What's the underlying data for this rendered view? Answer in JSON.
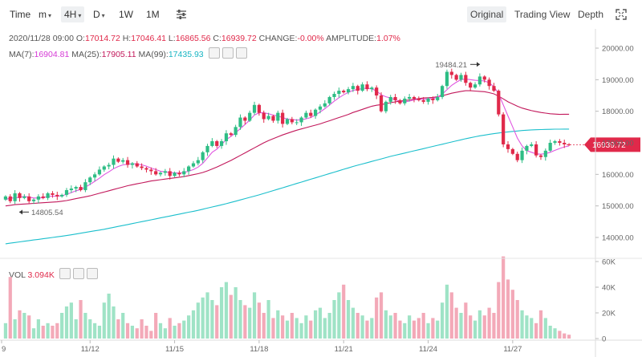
{
  "toolbar": {
    "items": [
      "Time",
      "m",
      "4H",
      "D",
      "1W",
      "1M"
    ],
    "active": "4H",
    "right": [
      "Original",
      "Trading View",
      "Depth"
    ],
    "active_right": "Original",
    "icons": [
      "indicator-settings-icon",
      "fullscreen-icon"
    ]
  },
  "ohlc": {
    "datetime": "2020/11/28 09:00",
    "open_label": "O:",
    "open": "17014.72",
    "high_label": "H:",
    "high": "17046.41",
    "low_label": "L:",
    "low": "16865.56",
    "close_label": "C:",
    "close": "16939.72",
    "change_label": "CHANGE:",
    "change": "-0.00%",
    "amplitude_label": "AMPLITUDE:",
    "amplitude": "1.07%"
  },
  "ma": {
    "ma7_label": "MA(7):",
    "ma7": "16904.81",
    "ma25_label": "MA(25):",
    "ma25": "17905.11",
    "ma99_label": "MA(99):",
    "ma99": "17435.93"
  },
  "vol": {
    "label": "VOL",
    "value": "3.094K"
  },
  "colors": {
    "up": "#2ebd85",
    "down": "#e0294a",
    "up_vol": "#9fe3c6",
    "down_vol": "#f3a9b8",
    "ma7": "#e056e0",
    "ma25": "#c2185b",
    "ma99": "#1bbfcc"
  },
  "chart_data": {
    "type": "candlestick",
    "x_ticks": [
      "9",
      "11/12",
      "11/15",
      "11/18",
      "11/21",
      "11/24",
      "11/27"
    ],
    "y_ticks": [
      "20000.00",
      "19000.00",
      "18000.00",
      "17000.00",
      "16000.00",
      "15000.00",
      "14000.00"
    ],
    "ylim": [
      13900,
      20200
    ],
    "vol_ticks": [
      "60K",
      "40K",
      "20K",
      "0"
    ],
    "vol_ylim": [
      0,
      60000
    ],
    "annotations": {
      "high": "19484.21",
      "low": "14805.54"
    },
    "last_price": "16939.72",
    "closes": [
      15300,
      15150,
      15400,
      15250,
      15300,
      15150,
      15200,
      15300,
      15250,
      15400,
      15350,
      15300,
      15350,
      15500,
      15550,
      15600,
      15500,
      15750,
      15900,
      16000,
      16150,
      16250,
      16300,
      16500,
      16400,
      16450,
      16300,
      16350,
      16250,
      16200,
      16150,
      16100,
      16000,
      16050,
      16100,
      15950,
      16050,
      16000,
      16100,
      16250,
      16350,
      16450,
      16700,
      16900,
      17050,
      16900,
      17050,
      17300,
      17250,
      17500,
      17800,
      17700,
      17950,
      18200,
      17950,
      17750,
      17850,
      17700,
      17950,
      17600,
      17750,
      17650,
      17650,
      17800,
      17950,
      17850,
      18050,
      18150,
      18250,
      18450,
      18550,
      18650,
      18600,
      18700,
      18800,
      18650,
      18850,
      18700,
      18750,
      18500,
      18000,
      18300,
      18450,
      18350,
      18250,
      18400,
      18450,
      18400,
      18350,
      18300,
      18400,
      18350,
      18450,
      18800,
      19250,
      19150,
      19000,
      19150,
      18900,
      18750,
      18850,
      19100,
      19000,
      18800,
      18650,
      17900,
      16950,
      16800,
      16650,
      16450,
      16750,
      16900,
      16950,
      16600,
      16550,
      16750,
      17000,
      17050,
      17000,
      16950,
      16940
    ],
    "ma7": [
      15200,
      15250,
      15250,
      15280,
      15300,
      15280,
      15250,
      15250,
      15260,
      15300,
      15310,
      15310,
      15320,
      15370,
      15420,
      15480,
      15520,
      15600,
      15680,
      15780,
      15880,
      15990,
      16080,
      16180,
      16250,
      16300,
      16320,
      16340,
      16330,
      16300,
      16260,
      16200,
      16150,
      16100,
      16080,
      16060,
      16050,
      16040,
      16060,
      16100,
      16150,
      16230,
      16350,
      16520,
      16700,
      16800,
      16950,
      17100,
      17200,
      17320,
      17450,
      17580,
      17720,
      17880,
      17950,
      17950,
      17920,
      17880,
      17850,
      17800,
      17750,
      17740,
      17720,
      17730,
      17760,
      17800,
      17880,
      17980,
      18080,
      18200,
      18320,
      18430,
      18520,
      18600,
      18660,
      18690,
      18720,
      18730,
      18710,
      18640,
      18520,
      18460,
      18420,
      18360,
      18320,
      18300,
      18320,
      18360,
      18380,
      18380,
      18390,
      18400,
      18450,
      18540,
      18680,
      18820,
      18920,
      19000,
      19020,
      19000,
      18980,
      18970,
      18960,
      18900,
      18780,
      18550,
      18200,
      17850,
      17500,
      17150,
      16900,
      16750,
      16700,
      16650,
      16640,
      16660,
      16700,
      16760,
      16820,
      16870,
      16900
    ],
    "ma25": [
      15000,
      15020,
      15040,
      15050,
      15060,
      15070,
      15080,
      15090,
      15100,
      15110,
      15120,
      15130,
      15150,
      15170,
      15200,
      15230,
      15260,
      15290,
      15320,
      15360,
      15400,
      15440,
      15480,
      15520,
      15560,
      15600,
      15640,
      15670,
      15700,
      15730,
      15760,
      15790,
      15810,
      15830,
      15850,
      15870,
      15890,
      15910,
      15930,
      15960,
      15990,
      16020,
      16060,
      16110,
      16170,
      16230,
      16300,
      16370,
      16440,
      16520,
      16600,
      16680,
      16760,
      16840,
      16920,
      17000,
      17070,
      17130,
      17190,
      17250,
      17300,
      17350,
      17400,
      17440,
      17480,
      17520,
      17560,
      17600,
      17650,
      17700,
      17750,
      17800,
      17850,
      17900,
      17960,
      18010,
      18060,
      18110,
      18160,
      18190,
      18210,
      18240,
      18270,
      18300,
      18320,
      18340,
      18360,
      18380,
      18400,
      18420,
      18430,
      18440,
      18460,
      18490,
      18530,
      18570,
      18600,
      18630,
      18650,
      18650,
      18640,
      18630,
      18620,
      18590,
      18550,
      18480,
      18390,
      18300,
      18230,
      18160,
      18100,
      18060,
      18020,
      17990,
      17960,
      17940,
      17920,
      17910,
      17900,
      17905,
      17905
    ],
    "ma99": [
      13800,
      13820,
      13840,
      13860,
      13880,
      13900,
      13920,
      13940,
      13960,
      13980,
      14000,
      14020,
      14040,
      14060,
      14085,
      14110,
      14135,
      14160,
      14185,
      14210,
      14235,
      14260,
      14290,
      14320,
      14350,
      14380,
      14410,
      14440,
      14470,
      14500,
      14530,
      14560,
      14590,
      14620,
      14650,
      14680,
      14710,
      14740,
      14770,
      14800,
      14830,
      14860,
      14895,
      14930,
      14965,
      15000,
      15035,
      15070,
      15110,
      15150,
      15190,
      15230,
      15270,
      15310,
      15350,
      15395,
      15440,
      15485,
      15530,
      15575,
      15620,
      15665,
      15710,
      15755,
      15800,
      15845,
      15890,
      15935,
      15980,
      16025,
      16070,
      16115,
      16160,
      16205,
      16250,
      16290,
      16330,
      16370,
      16410,
      16450,
      16490,
      16530,
      16570,
      16605,
      16640,
      16675,
      16710,
      16745,
      16780,
      16815,
      16850,
      16885,
      16920,
      16955,
      16990,
      17025,
      17060,
      17095,
      17130,
      17160,
      17190,
      17220,
      17245,
      17270,
      17290,
      17310,
      17330,
      17345,
      17360,
      17375,
      17390,
      17400,
      17410,
      17415,
      17420,
      17425,
      17428,
      17431,
      17433,
      17435,
      17436
    ],
    "volumes": [
      12,
      48,
      15,
      22,
      20,
      18,
      8,
      15,
      10,
      12,
      10,
      12,
      20,
      25,
      28,
      15,
      30,
      20,
      15,
      12,
      10,
      28,
      35,
      25,
      15,
      20,
      12,
      10,
      8,
      15,
      10,
      6,
      20,
      12,
      8,
      16,
      10,
      12,
      14,
      18,
      22,
      28,
      32,
      36,
      30,
      26,
      40,
      44,
      34,
      40,
      30,
      26,
      24,
      36,
      28,
      20,
      30,
      16,
      22,
      18,
      14,
      20,
      16,
      12,
      18,
      14,
      22,
      24,
      16,
      20,
      30,
      36,
      42,
      30,
      24,
      20,
      18,
      14,
      16,
      32,
      36,
      22,
      18,
      20,
      14,
      12,
      18,
      14,
      16,
      20,
      12,
      16,
      14,
      28,
      42,
      36,
      24,
      20,
      28,
      18,
      14,
      22,
      18,
      24,
      20,
      44,
      64,
      46,
      38,
      30,
      22,
      18,
      16,
      12,
      22,
      16,
      10,
      8,
      6,
      4,
      3
    ]
  }
}
